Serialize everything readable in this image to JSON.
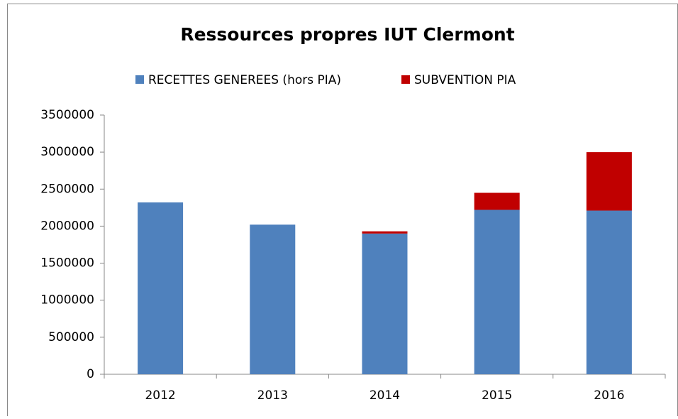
{
  "chart_data": {
    "type": "stacked_bar",
    "title": "Ressources propres IUT Clermont",
    "categories": [
      "2012",
      "2013",
      "2014",
      "2015",
      "2016"
    ],
    "series": [
      {
        "name": "RECETTES GENEREES (hors PIA)",
        "color": "#4f81bd",
        "values": [
          2320000,
          2020000,
          1900000,
          2220000,
          2210000
        ]
      },
      {
        "name": "SUBVENTION PIA",
        "color": "#c00000",
        "values": [
          0,
          0,
          30000,
          230000,
          790000
        ]
      }
    ],
    "ylim": [
      0,
      3500000
    ],
    "yticks": [
      0,
      500000,
      1000000,
      1500000,
      2000000,
      2500000,
      3000000,
      3500000
    ],
    "legend": "top"
  }
}
